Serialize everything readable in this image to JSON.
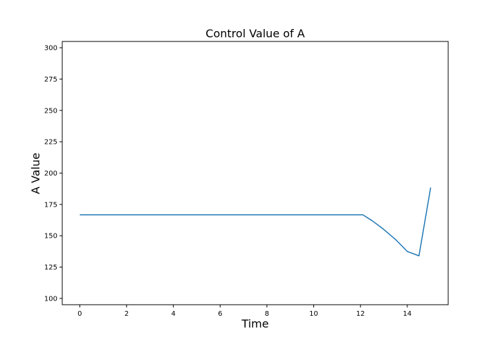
{
  "chart_data": {
    "type": "line",
    "title": "Control Value of A",
    "xlabel": "Time",
    "ylabel": "A Value",
    "xlim": [
      -0.75,
      15.75
    ],
    "ylim": [
      95,
      305
    ],
    "xticks": [
      0,
      2,
      4,
      6,
      8,
      10,
      12,
      14
    ],
    "yticks": [
      100,
      125,
      150,
      175,
      200,
      225,
      250,
      275,
      300
    ],
    "grid": false,
    "series": [
      {
        "color": "#1f77b4",
        "x": [
          0,
          1,
          2,
          3,
          4,
          5,
          6,
          7,
          8,
          9,
          10,
          11,
          12.1,
          12.5,
          13.0,
          13.5,
          14.0,
          14.5,
          15.0
        ],
        "y": [
          166.7,
          166.7,
          166.7,
          166.7,
          166.7,
          166.7,
          166.7,
          166.7,
          166.7,
          166.7,
          166.7,
          166.7,
          166.7,
          162.0,
          155.0,
          147.0,
          137.5,
          134.0,
          188.5
        ]
      }
    ]
  }
}
